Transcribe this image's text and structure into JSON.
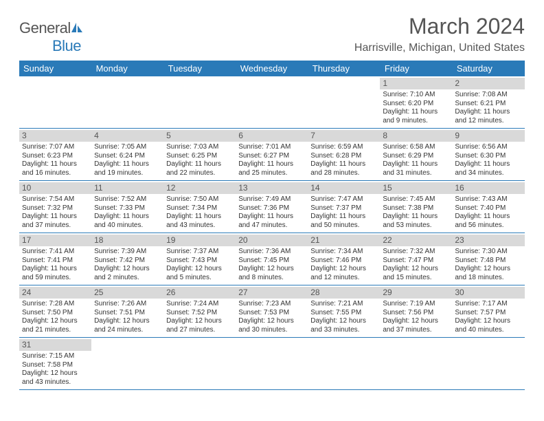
{
  "logo": {
    "text1": "General",
    "text2": "Blue"
  },
  "title": "March 2024",
  "location": "Harrisville, Michigan, United States",
  "weekdays": [
    "Sunday",
    "Monday",
    "Tuesday",
    "Wednesday",
    "Thursday",
    "Friday",
    "Saturday"
  ],
  "colors": {
    "header_bg": "#2a7ab8",
    "daynum_bg": "#d9d9d9",
    "text": "#555"
  },
  "weeks": [
    [
      {
        "empty": true
      },
      {
        "empty": true
      },
      {
        "empty": true
      },
      {
        "empty": true
      },
      {
        "empty": true
      },
      {
        "day": "1",
        "sunrise": "Sunrise: 7:10 AM",
        "sunset": "Sunset: 6:20 PM",
        "daylight1": "Daylight: 11 hours",
        "daylight2": "and 9 minutes."
      },
      {
        "day": "2",
        "sunrise": "Sunrise: 7:08 AM",
        "sunset": "Sunset: 6:21 PM",
        "daylight1": "Daylight: 11 hours",
        "daylight2": "and 12 minutes."
      }
    ],
    [
      {
        "day": "3",
        "sunrise": "Sunrise: 7:07 AM",
        "sunset": "Sunset: 6:23 PM",
        "daylight1": "Daylight: 11 hours",
        "daylight2": "and 16 minutes."
      },
      {
        "day": "4",
        "sunrise": "Sunrise: 7:05 AM",
        "sunset": "Sunset: 6:24 PM",
        "daylight1": "Daylight: 11 hours",
        "daylight2": "and 19 minutes."
      },
      {
        "day": "5",
        "sunrise": "Sunrise: 7:03 AM",
        "sunset": "Sunset: 6:25 PM",
        "daylight1": "Daylight: 11 hours",
        "daylight2": "and 22 minutes."
      },
      {
        "day": "6",
        "sunrise": "Sunrise: 7:01 AM",
        "sunset": "Sunset: 6:27 PM",
        "daylight1": "Daylight: 11 hours",
        "daylight2": "and 25 minutes."
      },
      {
        "day": "7",
        "sunrise": "Sunrise: 6:59 AM",
        "sunset": "Sunset: 6:28 PM",
        "daylight1": "Daylight: 11 hours",
        "daylight2": "and 28 minutes."
      },
      {
        "day": "8",
        "sunrise": "Sunrise: 6:58 AM",
        "sunset": "Sunset: 6:29 PM",
        "daylight1": "Daylight: 11 hours",
        "daylight2": "and 31 minutes."
      },
      {
        "day": "9",
        "sunrise": "Sunrise: 6:56 AM",
        "sunset": "Sunset: 6:30 PM",
        "daylight1": "Daylight: 11 hours",
        "daylight2": "and 34 minutes."
      }
    ],
    [
      {
        "day": "10",
        "sunrise": "Sunrise: 7:54 AM",
        "sunset": "Sunset: 7:32 PM",
        "daylight1": "Daylight: 11 hours",
        "daylight2": "and 37 minutes."
      },
      {
        "day": "11",
        "sunrise": "Sunrise: 7:52 AM",
        "sunset": "Sunset: 7:33 PM",
        "daylight1": "Daylight: 11 hours",
        "daylight2": "and 40 minutes."
      },
      {
        "day": "12",
        "sunrise": "Sunrise: 7:50 AM",
        "sunset": "Sunset: 7:34 PM",
        "daylight1": "Daylight: 11 hours",
        "daylight2": "and 43 minutes."
      },
      {
        "day": "13",
        "sunrise": "Sunrise: 7:49 AM",
        "sunset": "Sunset: 7:36 PM",
        "daylight1": "Daylight: 11 hours",
        "daylight2": "and 47 minutes."
      },
      {
        "day": "14",
        "sunrise": "Sunrise: 7:47 AM",
        "sunset": "Sunset: 7:37 PM",
        "daylight1": "Daylight: 11 hours",
        "daylight2": "and 50 minutes."
      },
      {
        "day": "15",
        "sunrise": "Sunrise: 7:45 AM",
        "sunset": "Sunset: 7:38 PM",
        "daylight1": "Daylight: 11 hours",
        "daylight2": "and 53 minutes."
      },
      {
        "day": "16",
        "sunrise": "Sunrise: 7:43 AM",
        "sunset": "Sunset: 7:40 PM",
        "daylight1": "Daylight: 11 hours",
        "daylight2": "and 56 minutes."
      }
    ],
    [
      {
        "day": "17",
        "sunrise": "Sunrise: 7:41 AM",
        "sunset": "Sunset: 7:41 PM",
        "daylight1": "Daylight: 11 hours",
        "daylight2": "and 59 minutes."
      },
      {
        "day": "18",
        "sunrise": "Sunrise: 7:39 AM",
        "sunset": "Sunset: 7:42 PM",
        "daylight1": "Daylight: 12 hours",
        "daylight2": "and 2 minutes."
      },
      {
        "day": "19",
        "sunrise": "Sunrise: 7:37 AM",
        "sunset": "Sunset: 7:43 PM",
        "daylight1": "Daylight: 12 hours",
        "daylight2": "and 5 minutes."
      },
      {
        "day": "20",
        "sunrise": "Sunrise: 7:36 AM",
        "sunset": "Sunset: 7:45 PM",
        "daylight1": "Daylight: 12 hours",
        "daylight2": "and 8 minutes."
      },
      {
        "day": "21",
        "sunrise": "Sunrise: 7:34 AM",
        "sunset": "Sunset: 7:46 PM",
        "daylight1": "Daylight: 12 hours",
        "daylight2": "and 12 minutes."
      },
      {
        "day": "22",
        "sunrise": "Sunrise: 7:32 AM",
        "sunset": "Sunset: 7:47 PM",
        "daylight1": "Daylight: 12 hours",
        "daylight2": "and 15 minutes."
      },
      {
        "day": "23",
        "sunrise": "Sunrise: 7:30 AM",
        "sunset": "Sunset: 7:48 PM",
        "daylight1": "Daylight: 12 hours",
        "daylight2": "and 18 minutes."
      }
    ],
    [
      {
        "day": "24",
        "sunrise": "Sunrise: 7:28 AM",
        "sunset": "Sunset: 7:50 PM",
        "daylight1": "Daylight: 12 hours",
        "daylight2": "and 21 minutes."
      },
      {
        "day": "25",
        "sunrise": "Sunrise: 7:26 AM",
        "sunset": "Sunset: 7:51 PM",
        "daylight1": "Daylight: 12 hours",
        "daylight2": "and 24 minutes."
      },
      {
        "day": "26",
        "sunrise": "Sunrise: 7:24 AM",
        "sunset": "Sunset: 7:52 PM",
        "daylight1": "Daylight: 12 hours",
        "daylight2": "and 27 minutes."
      },
      {
        "day": "27",
        "sunrise": "Sunrise: 7:23 AM",
        "sunset": "Sunset: 7:53 PM",
        "daylight1": "Daylight: 12 hours",
        "daylight2": "and 30 minutes."
      },
      {
        "day": "28",
        "sunrise": "Sunrise: 7:21 AM",
        "sunset": "Sunset: 7:55 PM",
        "daylight1": "Daylight: 12 hours",
        "daylight2": "and 33 minutes."
      },
      {
        "day": "29",
        "sunrise": "Sunrise: 7:19 AM",
        "sunset": "Sunset: 7:56 PM",
        "daylight1": "Daylight: 12 hours",
        "daylight2": "and 37 minutes."
      },
      {
        "day": "30",
        "sunrise": "Sunrise: 7:17 AM",
        "sunset": "Sunset: 7:57 PM",
        "daylight1": "Daylight: 12 hours",
        "daylight2": "and 40 minutes."
      }
    ],
    [
      {
        "day": "31",
        "sunrise": "Sunrise: 7:15 AM",
        "sunset": "Sunset: 7:58 PM",
        "daylight1": "Daylight: 12 hours",
        "daylight2": "and 43 minutes."
      },
      {
        "empty": true
      },
      {
        "empty": true
      },
      {
        "empty": true
      },
      {
        "empty": true
      },
      {
        "empty": true
      },
      {
        "empty": true
      }
    ]
  ]
}
